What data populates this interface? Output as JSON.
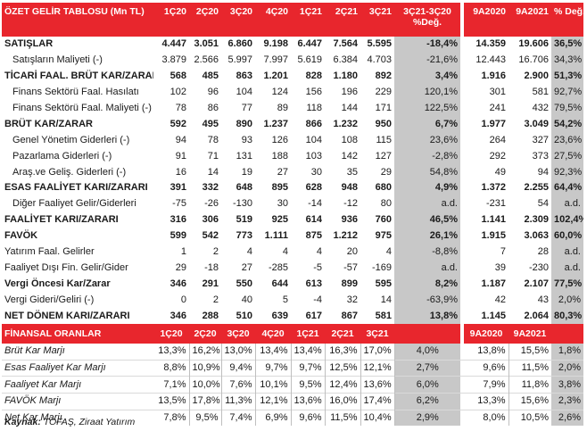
{
  "income_table": {
    "header": {
      "title": "ÖZET GELİR TABLOSU (Mn TL)",
      "cols": [
        "1Ç20",
        "2Ç20",
        "3Ç20",
        "4Ç20",
        "1Ç21",
        "2Ç21",
        "3Ç21"
      ],
      "chg_q_line1": "3Ç21-3Ç20",
      "chg_q_line2": "%Değ.",
      "cols2": [
        "9A2020",
        "9A2021"
      ],
      "chg_9m": "% Değ."
    },
    "rows": [
      {
        "label": "SATIŞLAR",
        "vals": [
          "4.447",
          "3.051",
          "6.860",
          "9.198",
          "6.447",
          "7.564",
          "5.595"
        ],
        "chg": "-18,4%",
        "n1": "14.359",
        "n2": "19.606",
        "chg2": "36,5%",
        "style": "bold"
      },
      {
        "label": "Satışların Maliyeti (-)",
        "vals": [
          "3.879",
          "2.566",
          "5.997",
          "7.997",
          "5.619",
          "6.384",
          "4.703"
        ],
        "chg": "-21,6%",
        "n1": "12.443",
        "n2": "16.706",
        "chg2": "34,3%",
        "style": "ind"
      },
      {
        "label": "TİCARİ FAAL. BRÜT KAR/ZARAR",
        "vals": [
          "568",
          "485",
          "863",
          "1.201",
          "828",
          "1.180",
          "892"
        ],
        "chg": "3,4%",
        "n1": "1.916",
        "n2": "2.900",
        "chg2": "51,3%",
        "style": "bold"
      },
      {
        "label": "Finans Sektörü Faal. Hasılatı",
        "vals": [
          "102",
          "96",
          "104",
          "124",
          "156",
          "196",
          "229"
        ],
        "chg": "120,1%",
        "n1": "301",
        "n2": "581",
        "chg2": "92,7%",
        "style": "ind"
      },
      {
        "label": "Finans Sektörü Faal. Maliyeti (-)",
        "vals": [
          "78",
          "86",
          "77",
          "89",
          "118",
          "144",
          "171"
        ],
        "chg": "122,5%",
        "n1": "241",
        "n2": "432",
        "chg2": "79,5%",
        "style": "ind"
      },
      {
        "label": "BRÜT KAR/ZARAR",
        "vals": [
          "592",
          "495",
          "890",
          "1.237",
          "866",
          "1.232",
          "950"
        ],
        "chg": "6,7%",
        "n1": "1.977",
        "n2": "3.049",
        "chg2": "54,2%",
        "style": "bold"
      },
      {
        "label": "Genel Yönetim Giderleri (-)",
        "vals": [
          "94",
          "78",
          "93",
          "126",
          "104",
          "108",
          "115"
        ],
        "chg": "23,6%",
        "n1": "264",
        "n2": "327",
        "chg2": "23,6%",
        "style": "ind"
      },
      {
        "label": "Pazarlama Giderleri (-)",
        "vals": [
          "91",
          "71",
          "131",
          "188",
          "103",
          "142",
          "127"
        ],
        "chg": "-2,8%",
        "n1": "292",
        "n2": "373",
        "chg2": "27,5%",
        "style": "ind"
      },
      {
        "label": "Araş.ve Geliş. Giderleri (-)",
        "vals": [
          "16",
          "14",
          "19",
          "27",
          "30",
          "35",
          "29"
        ],
        "chg": "54,8%",
        "n1": "49",
        "n2": "94",
        "chg2": "92,3%",
        "style": "ind"
      },
      {
        "label": "ESAS FAALİYET KARI/ZARARI",
        "vals": [
          "391",
          "332",
          "648",
          "895",
          "628",
          "948",
          "680"
        ],
        "chg": "4,9%",
        "n1": "1.372",
        "n2": "2.255",
        "chg2": "64,4%",
        "style": "bold"
      },
      {
        "label": "Diğer Faaliyet Gelir/Giderleri",
        "vals": [
          "-75",
          "-26",
          "-130",
          "30",
          "-14",
          "-12",
          "80"
        ],
        "chg": "a.d.",
        "n1": "-231",
        "n2": "54",
        "chg2": "a.d.",
        "style": "ind"
      },
      {
        "label": "FAALİYET KARI/ZARARI",
        "vals": [
          "316",
          "306",
          "519",
          "925",
          "614",
          "936",
          "760"
        ],
        "chg": "46,5%",
        "n1": "1.141",
        "n2": "2.309",
        "chg2": "102,4%",
        "style": "bold"
      },
      {
        "label": "FAVÖK",
        "vals": [
          "599",
          "542",
          "773",
          "1.111",
          "875",
          "1.212",
          "975"
        ],
        "chg": "26,1%",
        "n1": "1.915",
        "n2": "3.063",
        "chg2": "60,0%",
        "style": "bold"
      },
      {
        "label": "Yatırım Faal. Gelirler",
        "vals": [
          "1",
          "2",
          "4",
          "4",
          "4",
          "20",
          "4"
        ],
        "chg": "-8,8%",
        "n1": "7",
        "n2": "28",
        "chg2": "a.d.",
        "style": "plain"
      },
      {
        "label": "Faaliyet Dışı Fin. Gelir/Gider",
        "vals": [
          "29",
          "-18",
          "27",
          "-285",
          "-5",
          "-57",
          "-169"
        ],
        "chg": "a.d.",
        "n1": "39",
        "n2": "-230",
        "chg2": "a.d.",
        "style": "plain"
      },
      {
        "label": "Vergi Öncesi Kar/Zarar",
        "vals": [
          "346",
          "291",
          "550",
          "644",
          "613",
          "899",
          "595"
        ],
        "chg": "8,2%",
        "n1": "1.187",
        "n2": "2.107",
        "chg2": "77,5%",
        "style": "bold"
      },
      {
        "label": "Vergi Gideri/Geliri (-)",
        "vals": [
          "0",
          "2",
          "40",
          "5",
          "-4",
          "32",
          "14"
        ],
        "chg": "-63,9%",
        "n1": "42",
        "n2": "43",
        "chg2": "2,0%",
        "style": "plain"
      },
      {
        "label": "NET DÖNEM KARI/ZARARI",
        "vals": [
          "346",
          "288",
          "510",
          "639",
          "617",
          "867",
          "581"
        ],
        "chg": "13,8%",
        "n1": "1.145",
        "n2": "2.064",
        "chg2": "80,3%",
        "style": "bold"
      }
    ]
  },
  "ratio_table": {
    "header": {
      "title": "FİNANSAL ORANLAR",
      "cols": [
        "1Ç20",
        "2Ç20",
        "3Ç20",
        "4Ç20",
        "1Ç21",
        "2Ç21",
        "3Ç21"
      ],
      "cols2": [
        "9A2020",
        "9A2021"
      ]
    },
    "rows": [
      {
        "label": "Brüt Kar Marjı",
        "vals": [
          "13,3%",
          "16,2%",
          "13,0%",
          "13,4%",
          "13,4%",
          "16,3%",
          "17,0%"
        ],
        "chg": "4,0%",
        "n1": "13,8%",
        "n2": "15,5%",
        "chg2": "1,8%"
      },
      {
        "label": "Esas Faaliyet Kar Marjı",
        "vals": [
          "8,8%",
          "10,9%",
          "9,4%",
          "9,7%",
          "9,7%",
          "12,5%",
          "12,1%"
        ],
        "chg": "2,7%",
        "n1": "9,6%",
        "n2": "11,5%",
        "chg2": "2,0%"
      },
      {
        "label": "Faaliyet Kar Marjı",
        "vals": [
          "7,1%",
          "10,0%",
          "7,6%",
          "10,1%",
          "9,5%",
          "12,4%",
          "13,6%"
        ],
        "chg": "6,0%",
        "n1": "7,9%",
        "n2": "11,8%",
        "chg2": "3,8%"
      },
      {
        "label": "FAVÖK Marjı",
        "vals": [
          "13,5%",
          "17,8%",
          "11,3%",
          "12,1%",
          "13,6%",
          "16,0%",
          "17,4%"
        ],
        "chg": "6,2%",
        "n1": "13,3%",
        "n2": "15,6%",
        "chg2": "2,3%"
      },
      {
        "label": "Net Kar Marjı",
        "vals": [
          "7,8%",
          "9,5%",
          "7,4%",
          "6,9%",
          "9,6%",
          "11,5%",
          "10,4%"
        ],
        "chg": "2,9%",
        "n1": "8,0%",
        "n2": "10,5%",
        "chg2": "2,6%"
      }
    ]
  },
  "source": {
    "label": "Kaynak:",
    "text": " TOFAŞ, Ziraat Yatırım"
  }
}
